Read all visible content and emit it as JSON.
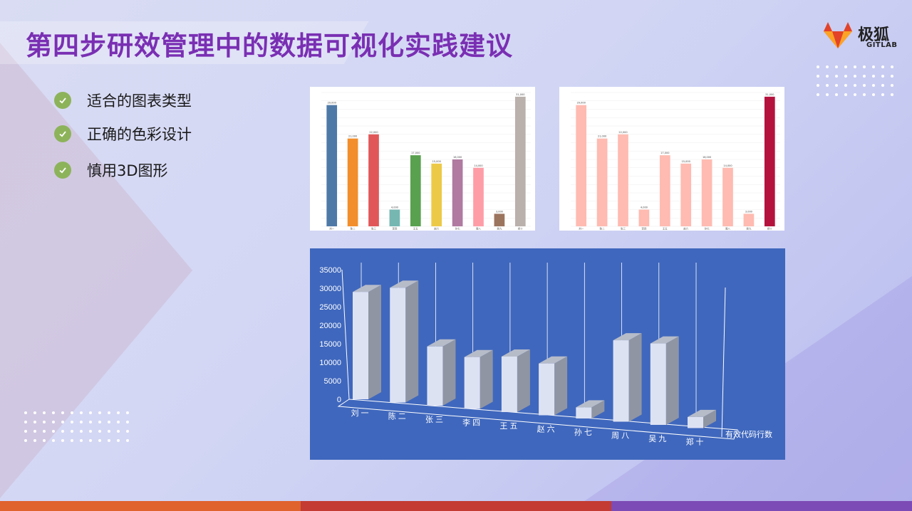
{
  "slide": {
    "title": "第四步研效管理中的数据可视化实践建议",
    "logo": {
      "text": "极狐",
      "sub": "GITLAB"
    },
    "bullets": [
      "适合的图表类型",
      "正确的色彩设计",
      "慎用3D图形"
    ]
  },
  "colors": {
    "title": "#7a2fb3",
    "check": "#8db35a",
    "chart3_bg": "#3f67bd",
    "bottom_bar": [
      "#e0622d",
      "#c33b32",
      "#7d4bb5"
    ]
  },
  "chart_data": [
    {
      "type": "bar",
      "categories": [
        "刘一",
        "陈二",
        "张三",
        "李四",
        "王五",
        "赵六",
        "孙七",
        "周八",
        "吴九",
        "郑十"
      ],
      "values": [
        29000,
        21000,
        22000,
        4000,
        17000,
        15000,
        16000,
        14000,
        3000,
        31000
      ],
      "data_labels": [
        "29,000",
        "21,000",
        "22,000",
        "4,000",
        "17,000",
        "15,000",
        "16,000",
        "14,000",
        "3,000",
        "31,000"
      ],
      "colors": [
        "#4e79a7",
        "#f28e2b",
        "#e15759",
        "#76b7b2",
        "#59a14f",
        "#edc948",
        "#b07aa1",
        "#ff9da7",
        "#9c755f",
        "#bab0ac"
      ],
      "ylim": [
        0,
        32000
      ]
    },
    {
      "type": "bar",
      "categories": [
        "刘一",
        "陈二",
        "张三",
        "李四",
        "王五",
        "赵六",
        "孙七",
        "周八",
        "吴九",
        "郑十"
      ],
      "values": [
        29000,
        21000,
        22000,
        4000,
        17000,
        15000,
        16000,
        14000,
        3000,
        31000
      ],
      "data_labels": [
        "29,000",
        "21,000",
        "22,000",
        "4,000",
        "17,000",
        "15,000",
        "16,000",
        "14,000",
        "3,000",
        "31,000"
      ],
      "colors": [
        "#ffbbb1",
        "#ffbbb1",
        "#ffbbb1",
        "#ffbbb1",
        "#ffbbb1",
        "#ffbbb1",
        "#ffbbb1",
        "#ffbbb1",
        "#ffbbb1",
        "#b5123e"
      ],
      "ylim": [
        0,
        32000
      ]
    },
    {
      "type": "bar",
      "style": "3d",
      "categories": [
        "刘一",
        "陈二",
        "张三",
        "李四",
        "王五",
        "赵六",
        "孙七",
        "周八",
        "吴九",
        "郑十"
      ],
      "series": [
        {
          "name": "有效代码行数",
          "values": [
            29000,
            31000,
            16000,
            14000,
            15000,
            14000,
            3000,
            22000,
            22000,
            3000
          ]
        }
      ],
      "y_ticks": [
        "35000",
        "30000",
        "25000",
        "20000",
        "15000",
        "10000",
        "5000",
        "0"
      ],
      "ylim": [
        0,
        35000
      ],
      "grid": true,
      "colors": {
        "front": "#dde2f3",
        "side": "#8f95a3",
        "top": "#b7bcc9",
        "background": "#3f67bd"
      }
    }
  ]
}
